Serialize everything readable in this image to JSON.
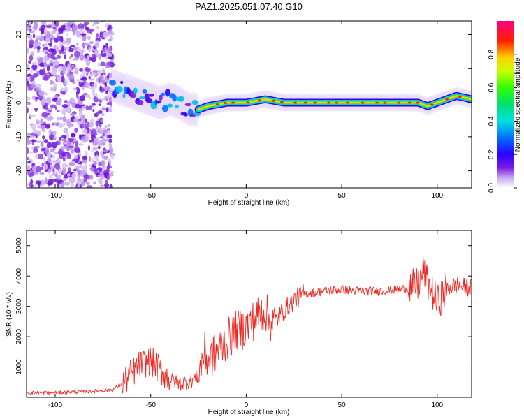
{
  "title": "PAZ1.2025.051.07.40.G10",
  "colors": {
    "snr_line": "#ee2a24",
    "axis": "#000000",
    "background": "#ffffff"
  },
  "chart_data": [
    {
      "type": "heatmap",
      "xlabel": "Height of straight line (km)",
      "ylabel": "Frequency (Hz)",
      "xlim": [
        -115,
        118
      ],
      "ylim": [
        -25,
        24
      ],
      "xticks": [
        -100,
        -50,
        0,
        50,
        100
      ],
      "yticks": [
        -20,
        -10,
        0,
        10,
        20
      ],
      "colorbar": {
        "label": "Normalized spectral amplitude",
        "range": [
          0,
          1
        ],
        "ticks": [
          0.0,
          0.2,
          0.4,
          0.6,
          0.8
        ],
        "colormap": "rainbow (white-violet-blue-cyan-green-yellow-red-magenta)"
      },
      "ridge": {
        "description": "Spectral peak frequency vs height",
        "x": [
          -115,
          -100,
          -80,
          -70,
          -65,
          -60,
          -55,
          -50,
          -45,
          -40,
          -35,
          -30,
          -25,
          -20,
          -10,
          0,
          10,
          20,
          40,
          60,
          80,
          90,
          95,
          100,
          105,
          110,
          118
        ],
        "y": [
          0,
          0,
          0,
          5,
          4,
          3,
          2,
          1,
          0,
          1,
          0,
          -2,
          -2,
          -1,
          0,
          0,
          1,
          0,
          0,
          0,
          0,
          0,
          -1,
          0,
          1,
          2,
          1
        ]
      },
      "noise_region": [
        -115,
        -70
      ]
    },
    {
      "type": "line",
      "xlabel": "Height of straight line (km)",
      "ylabel": "SNR (10 * v/v)",
      "xlim": [
        -115,
        118
      ],
      "ylim": [
        0,
        5500
      ],
      "xticks": [
        -100,
        -50,
        0,
        50,
        100
      ],
      "yticks": [
        1000,
        2000,
        3000,
        4000,
        5000
      ],
      "series": [
        {
          "x": [
            -115,
            -100,
            -90,
            -80,
            -70,
            -65,
            -60,
            -55,
            -50,
            -45,
            -40,
            -35,
            -30,
            -25,
            -22,
            -20,
            -15,
            -10,
            -5,
            0,
            5,
            10,
            12,
            15,
            20,
            25,
            30,
            40,
            50,
            60,
            70,
            80,
            85,
            90,
            93,
            95,
            100,
            105,
            110,
            118
          ],
          "values": [
            150,
            150,
            180,
            200,
            250,
            450,
            800,
            1100,
            1200,
            900,
            600,
            450,
            500,
            700,
            1500,
            1200,
            1500,
            1900,
            2200,
            2300,
            2600,
            2900,
            2500,
            2500,
            2900,
            3200,
            3400,
            3500,
            3550,
            3500,
            3500,
            3550,
            3600,
            3700,
            4200,
            3800,
            3100,
            3600,
            3700,
            3600
          ]
        }
      ]
    }
  ]
}
